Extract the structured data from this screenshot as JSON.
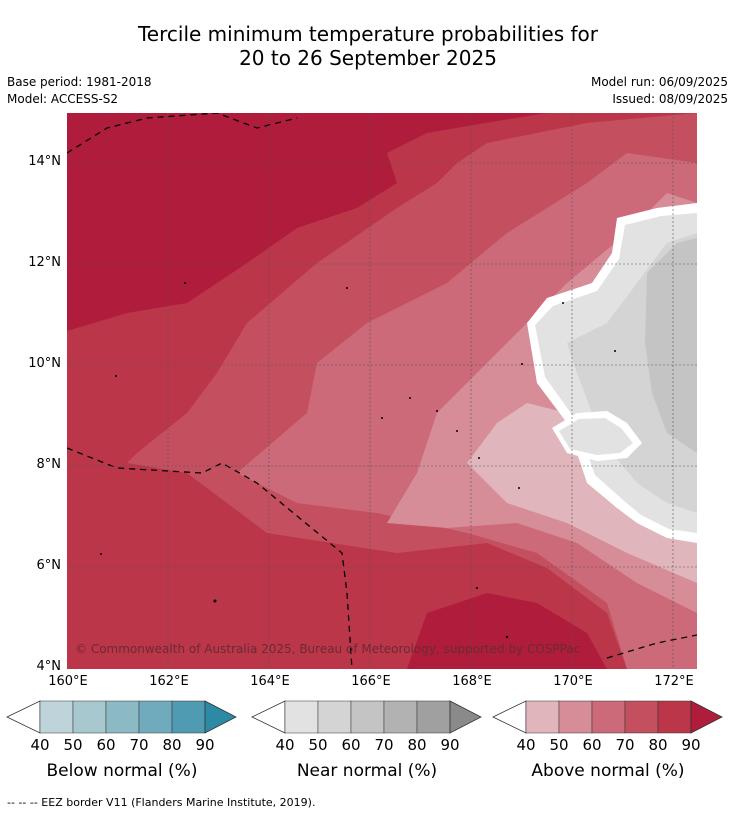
{
  "title_line1": "Tercile minimum temperature probabilities for",
  "title_line2": "20 to 26 September 2025",
  "base_period": "Base period: 1981-2018",
  "model": "Model: ACCESS-S2",
  "model_run": "Model run: 06/09/2025",
  "issued": "Issued: 08/09/2025",
  "copyright": "© Commonwealth of Australia 2025, Bureau of Meteorology, supported by COSPPac",
  "lat_labels": [
    "14°N",
    "12°N",
    "10°N",
    "8°N",
    "6°N",
    "4°N"
  ],
  "lon_labels": [
    "160°E",
    "162°E",
    "164°E",
    "166°E",
    "168°E",
    "170°E",
    "172°E"
  ],
  "legends": [
    {
      "label": "Below normal (%)",
      "ticks": [
        "40",
        "50",
        "60",
        "70",
        "80",
        "90"
      ],
      "colors": [
        "#bfd4da",
        "#a6c8ce",
        "#8bbac5",
        "#6fabbc",
        "#4f9bb1",
        "#2c8aa5"
      ]
    },
    {
      "label": "Near normal (%)",
      "ticks": [
        "40",
        "50",
        "60",
        "70",
        "80",
        "90"
      ],
      "colors": [
        "#e2e2e2",
        "#d4d4d4",
        "#c4c4c4",
        "#b2b2b2",
        "#a0a0a0",
        "#8a8a8a"
      ]
    },
    {
      "label": "Above normal (%)",
      "ticks": [
        "40",
        "50",
        "60",
        "70",
        "80",
        "90"
      ],
      "colors": [
        "#e1b5bc",
        "#d78d98",
        "#cc6a79",
        "#c4505f",
        "#bb3649",
        "#b01c3b"
      ]
    }
  ],
  "eez_note": "--  --  -- EEZ border V11 (Flanders Marine Institute, 2019).",
  "map_colors": {
    "above_90": "#b01c3b",
    "above_80": "#bb3649",
    "above_70": "#c4505f",
    "above_60": "#cc6a79",
    "above_50": "#d78d98",
    "above_40": "#e1b5bc",
    "near_40": "#e2e2e2",
    "near_50": "#d4d4d4",
    "near_60": "#c4c4c4",
    "boundary": "#ffffff"
  }
}
